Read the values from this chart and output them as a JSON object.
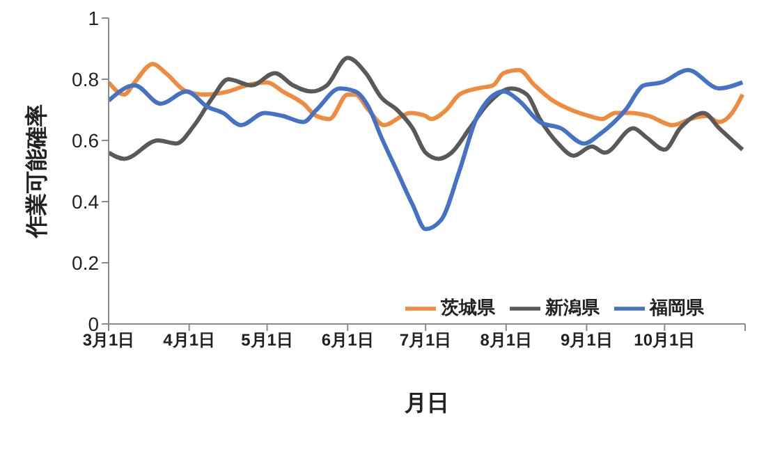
{
  "chart_data": {
    "type": "line",
    "xlabel": "月日",
    "ylabel": "作業可能確率",
    "ylim": [
      0,
      1
    ],
    "yticks": [
      0,
      0.2,
      0.4,
      0.6,
      0.8,
      1
    ],
    "xlim": [
      "--03-01",
      "--11-01"
    ],
    "xticks": [
      {
        "value": "--03-01",
        "label": "3月1日"
      },
      {
        "value": "--04-01",
        "label": "4月1日"
      },
      {
        "value": "--05-01",
        "label": "5月1日"
      },
      {
        "value": "--06-01",
        "label": "6月1日"
      },
      {
        "value": "--07-01",
        "label": "7月1日"
      },
      {
        "value": "--08-01",
        "label": "8月1日"
      },
      {
        "value": "--09-01",
        "label": "9月1日"
      },
      {
        "value": "--10-01",
        "label": "10月1日"
      },
      {
        "value": "--11-01",
        "label": null
      }
    ],
    "grid": false,
    "legend": "bottom right",
    "marker": "none",
    "line_style": "solid",
    "series": [
      {
        "name": "茨城県",
        "color": "#f08a3c",
        "x": [
          "--03-01",
          "--03-07",
          "--03-11",
          "--03-18",
          "--03-23",
          "--03-31",
          "--04-07",
          "--04-16",
          "--04-23",
          "--05-01",
          "--05-07",
          "--05-15",
          "--05-20",
          "--05-25",
          "--06-01",
          "--06-04",
          "--06-09",
          "--06-15",
          "--06-22",
          "--06-25",
          "--07-01",
          "--07-03",
          "--07-09",
          "--07-14",
          "--07-21",
          "--07-27",
          "--07-31",
          "--08-06",
          "--08-12",
          "--08-19",
          "--08-26",
          "--09-02",
          "--09-07",
          "--09-12",
          "--09-18",
          "--09-25",
          "--10-04",
          "--10-11",
          "--10-17",
          "--10-22",
          "--10-27",
          "--10-31"
        ],
        "values": [
          0.79,
          0.75,
          0.79,
          0.85,
          0.82,
          0.76,
          0.75,
          0.76,
          0.78,
          0.79,
          0.76,
          0.72,
          0.68,
          0.67,
          0.75,
          0.75,
          0.7,
          0.65,
          0.68,
          0.69,
          0.68,
          0.67,
          0.7,
          0.75,
          0.77,
          0.78,
          0.82,
          0.83,
          0.78,
          0.73,
          0.7,
          0.68,
          0.67,
          0.69,
          0.69,
          0.68,
          0.65,
          0.67,
          0.68,
          0.66,
          0.69,
          0.75
        ]
      },
      {
        "name": "新潟県",
        "color": "#595959",
        "x": [
          "--03-01",
          "--03-07",
          "--03-20",
          "--03-27",
          "--04-03",
          "--04-10",
          "--04-16",
          "--04-25",
          "--05-04",
          "--05-11",
          "--05-18",
          "--05-24",
          "--06-01",
          "--06-08",
          "--06-14",
          "--06-20",
          "--06-26",
          "--07-01",
          "--07-06",
          "--07-11",
          "--07-18",
          "--07-25",
          "--08-03",
          "--08-09",
          "--08-14",
          "--08-21",
          "--08-27",
          "--09-03",
          "--09-08",
          "--09-19",
          "--09-24",
          "--10-01",
          "--10-07",
          "--10-16",
          "--10-22",
          "--10-31"
        ],
        "values": [
          0.56,
          0.54,
          0.6,
          0.59,
          0.65,
          0.74,
          0.8,
          0.78,
          0.82,
          0.78,
          0.76,
          0.78,
          0.87,
          0.82,
          0.74,
          0.7,
          0.64,
          0.56,
          0.54,
          0.56,
          0.64,
          0.72,
          0.77,
          0.75,
          0.67,
          0.59,
          0.55,
          0.58,
          0.56,
          0.64,
          0.61,
          0.57,
          0.64,
          0.69,
          0.64,
          0.57
        ]
      },
      {
        "name": "福岡県",
        "color": "#4472c4",
        "x": [
          "--03-01",
          "--03-11",
          "--03-21",
          "--03-31",
          "--04-08",
          "--04-14",
          "--04-21",
          "--04-30",
          "--05-07",
          "--05-15",
          "--05-20",
          "--05-29",
          "--06-04",
          "--06-09",
          "--06-14",
          "--06-20",
          "--06-26",
          "--07-01",
          "--07-07",
          "--07-14",
          "--07-21",
          "--07-31",
          "--08-06",
          "--08-14",
          "--08-22",
          "--08-31",
          "--09-06",
          "--09-16",
          "--09-23",
          "--09-30",
          "--10-10",
          "--10-22",
          "--10-31"
        ],
        "values": [
          0.73,
          0.78,
          0.72,
          0.76,
          0.71,
          0.69,
          0.65,
          0.69,
          0.68,
          0.66,
          0.7,
          0.77,
          0.76,
          0.71,
          0.61,
          0.5,
          0.39,
          0.31,
          0.34,
          0.5,
          0.68,
          0.76,
          0.73,
          0.66,
          0.64,
          0.59,
          0.62,
          0.7,
          0.78,
          0.79,
          0.83,
          0.77,
          0.79
        ]
      }
    ]
  }
}
